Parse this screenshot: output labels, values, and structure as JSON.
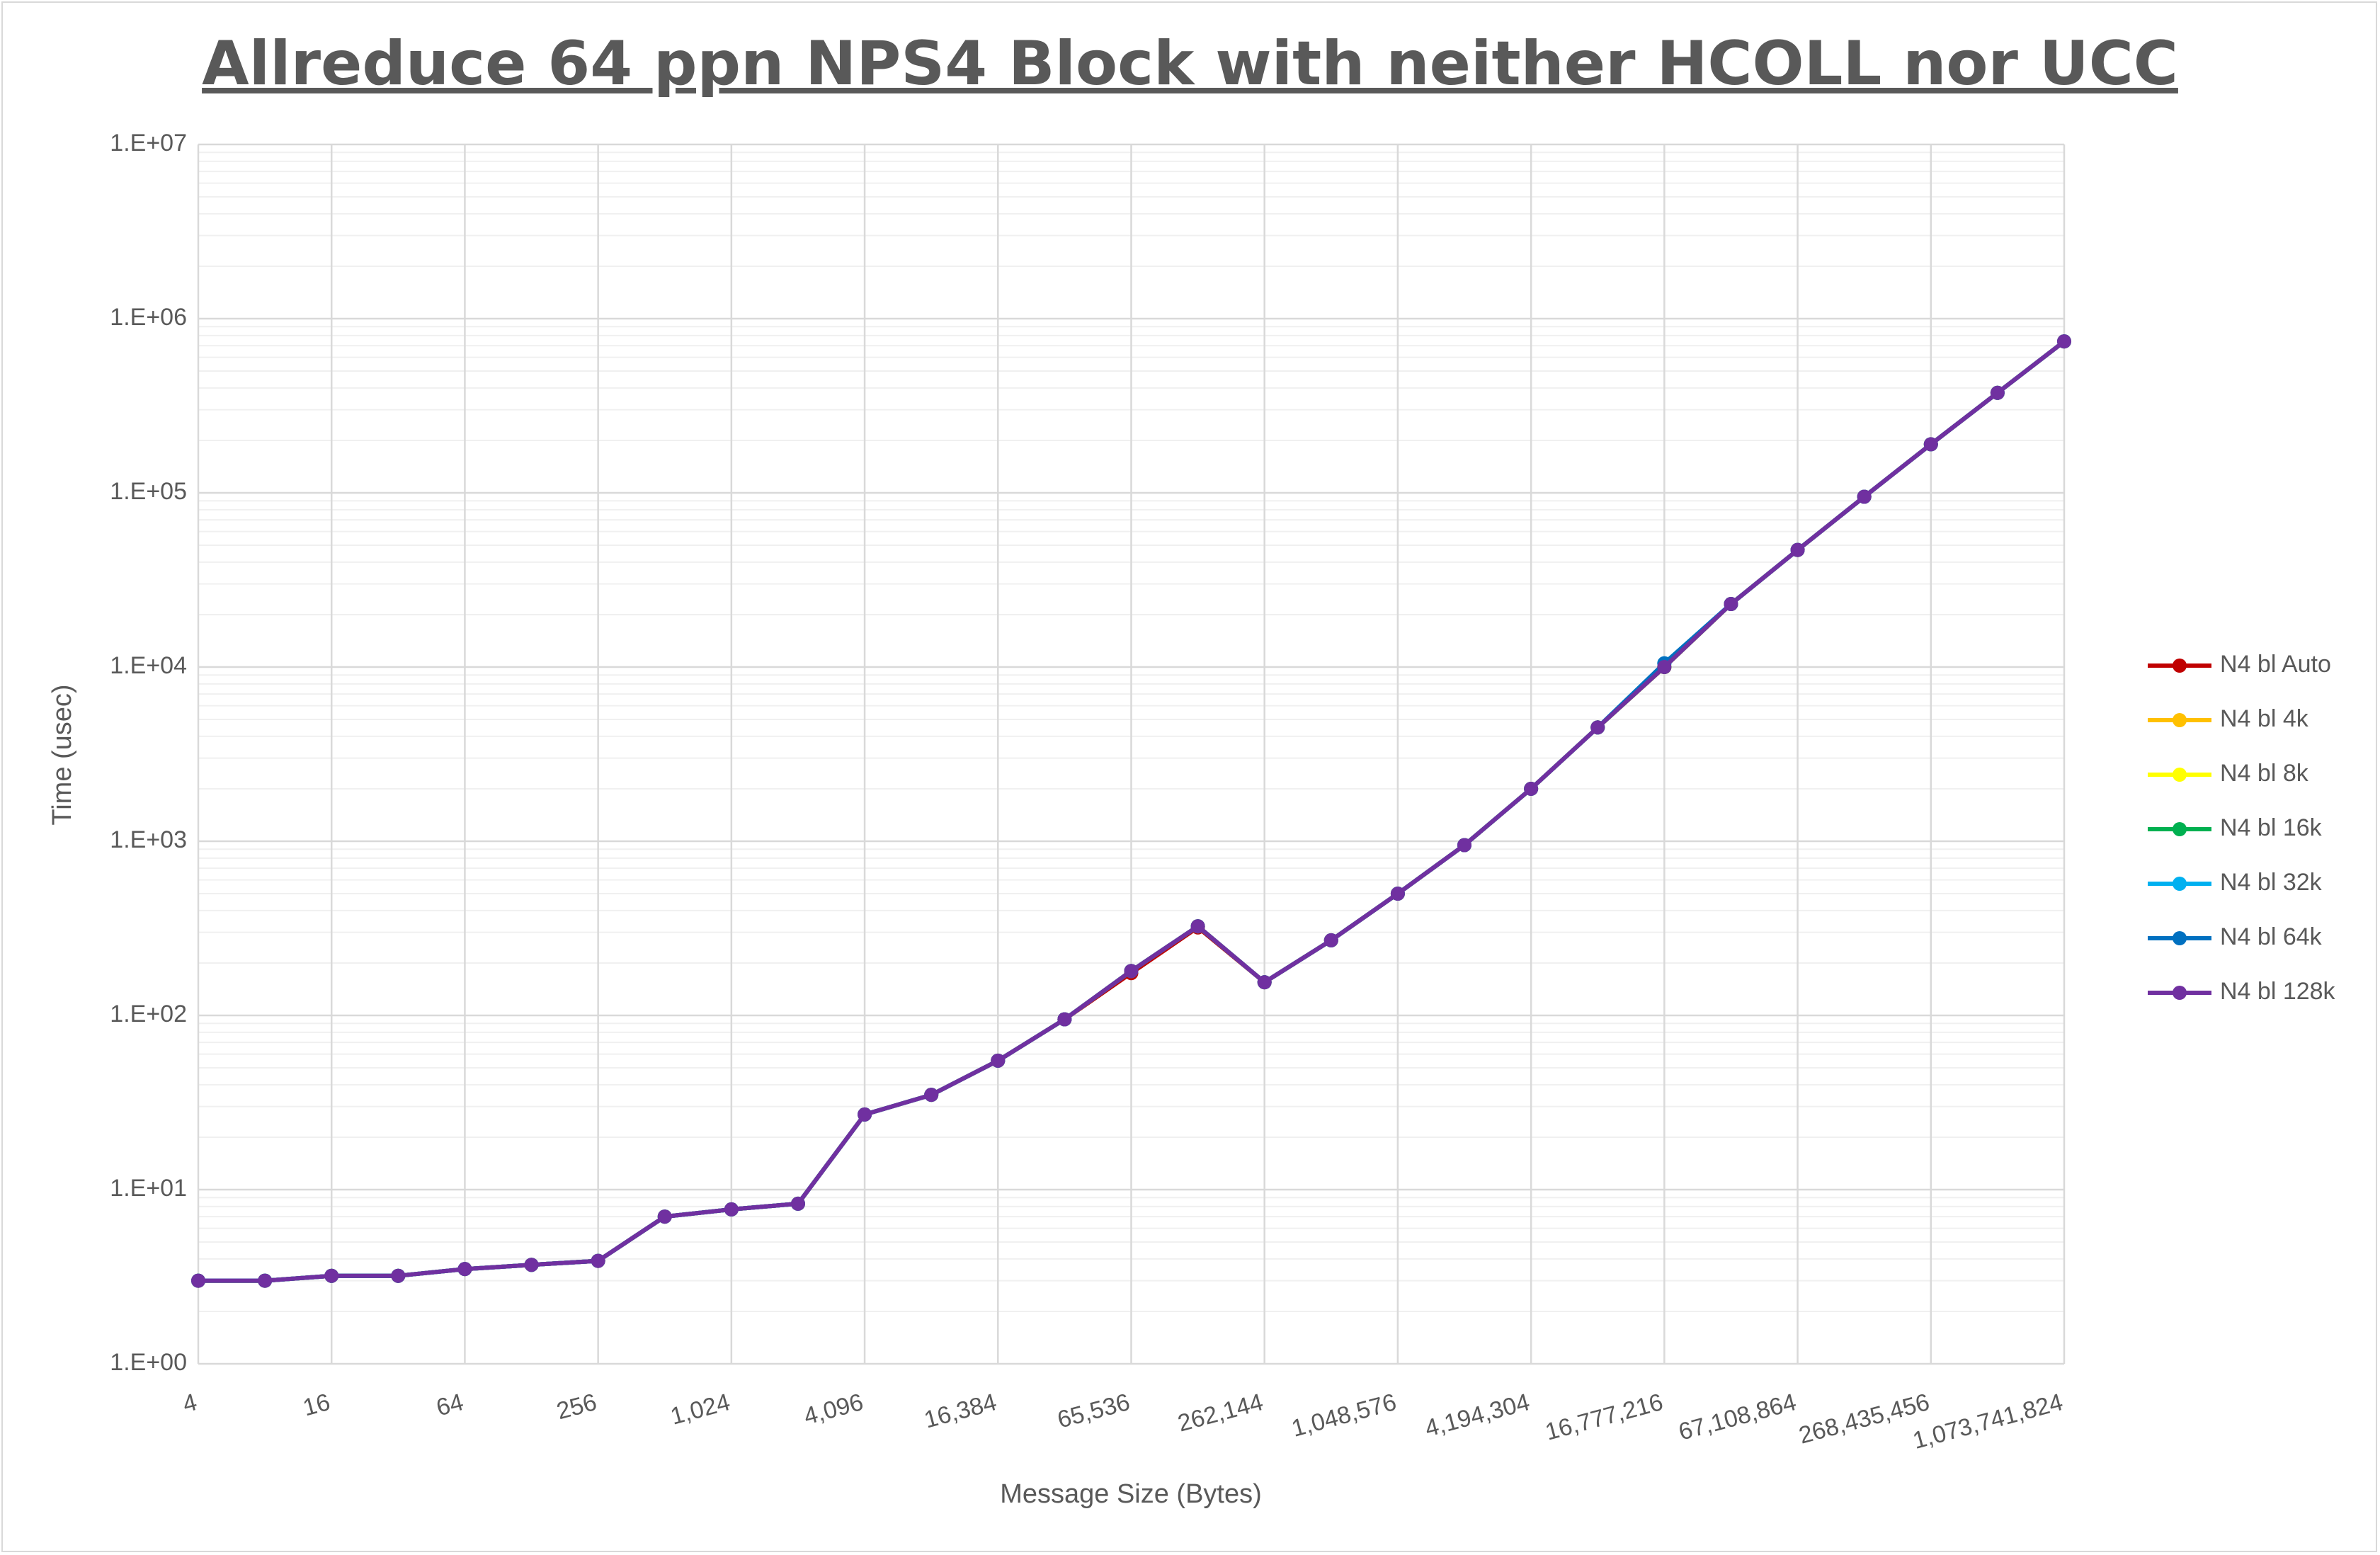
{
  "chart_data": {
    "type": "line",
    "title": "Allreduce 64 ppn NPS4 Block with neither HCOLL nor UCC",
    "xlabel": "Message Size (Bytes)",
    "ylabel": "Time (usec)",
    "yscale": "log",
    "ylim": [
      1,
      10000000
    ],
    "y_ticks": [
      "1.E+00",
      "1.E+01",
      "1.E+02",
      "1.E+03",
      "1.E+04",
      "1.E+05",
      "1.E+06",
      "1.E+07"
    ],
    "x_tick_labels": [
      "4",
      "16",
      "64",
      "256",
      "1,024",
      "4,096",
      "16,384",
      "65,536",
      "262,144",
      "1,048,576",
      "4,194,304",
      "16,777,216",
      "67,108,864",
      "268,435,456",
      "1,073,741,824"
    ],
    "x": [
      4,
      8,
      16,
      32,
      64,
      128,
      256,
      512,
      1024,
      2048,
      4096,
      8192,
      16384,
      32768,
      65536,
      131072,
      262144,
      524288,
      1048576,
      2097152,
      4194304,
      8388608,
      16777216,
      33554432,
      67108864,
      134217728,
      268435456,
      536870912,
      1073741824
    ],
    "legend_position": "right",
    "grid": true,
    "series": [
      {
        "name": "N4 bl Auto",
        "color": "#c00000",
        "values": [
          3.0,
          3.0,
          3.2,
          3.2,
          3.5,
          3.7,
          3.9,
          7.0,
          7.7,
          8.3,
          27,
          35,
          55,
          95,
          175,
          320,
          155,
          270,
          500,
          950,
          2000,
          4500,
          10000,
          23000,
          47000,
          95000,
          190000,
          375000,
          740000
        ]
      },
      {
        "name": "N4 bl 4k",
        "color": "#ffc000",
        "values": [
          3.0,
          3.0,
          3.2,
          3.2,
          3.5,
          3.7,
          3.9,
          7.0,
          7.7,
          8.3,
          27,
          35,
          55,
          95,
          180,
          325,
          155,
          270,
          500,
          950,
          2000,
          4500,
          10000,
          23000,
          47000,
          95000,
          190000,
          375000,
          740000
        ]
      },
      {
        "name": "N4 bl 8k",
        "color": "#ffff00",
        "values": [
          3.0,
          3.0,
          3.2,
          3.2,
          3.5,
          3.7,
          3.9,
          7.0,
          7.7,
          8.3,
          27,
          35,
          55,
          95,
          180,
          325,
          155,
          270,
          500,
          950,
          2000,
          4500,
          10000,
          23000,
          47000,
          95000,
          190000,
          375000,
          740000
        ]
      },
      {
        "name": "N4 bl 16k",
        "color": "#00b050",
        "values": [
          3.0,
          3.0,
          3.2,
          3.2,
          3.5,
          3.7,
          3.9,
          7.0,
          7.7,
          8.3,
          27,
          35,
          55,
          95,
          180,
          325,
          155,
          270,
          500,
          950,
          2000,
          4500,
          10000,
          23000,
          47000,
          95000,
          190000,
          375000,
          740000
        ]
      },
      {
        "name": "N4 bl 32k",
        "color": "#00b0f0",
        "values": [
          3.0,
          3.0,
          3.2,
          3.2,
          3.5,
          3.7,
          3.9,
          7.0,
          7.7,
          8.3,
          27,
          35,
          55,
          95,
          180,
          325,
          155,
          270,
          500,
          950,
          2000,
          4500,
          10500,
          23000,
          47000,
          95000,
          190000,
          375000,
          740000
        ]
      },
      {
        "name": "N4 bl 64k",
        "color": "#0070c0",
        "values": [
          3.0,
          3.0,
          3.2,
          3.2,
          3.5,
          3.7,
          3.9,
          7.0,
          7.7,
          8.3,
          27,
          35,
          55,
          95,
          180,
          325,
          155,
          270,
          500,
          950,
          2000,
          4500,
          10500,
          23000,
          47000,
          95000,
          190000,
          375000,
          740000
        ]
      },
      {
        "name": "N4 bl 128k",
        "color": "#7030a0",
        "values": [
          3.0,
          3.0,
          3.2,
          3.2,
          3.5,
          3.7,
          3.9,
          7.0,
          7.7,
          8.3,
          27,
          35,
          55,
          95,
          180,
          325,
          155,
          270,
          500,
          950,
          2000,
          4500,
          10000,
          23000,
          47000,
          95000,
          190000,
          375000,
          740000
        ]
      }
    ]
  }
}
